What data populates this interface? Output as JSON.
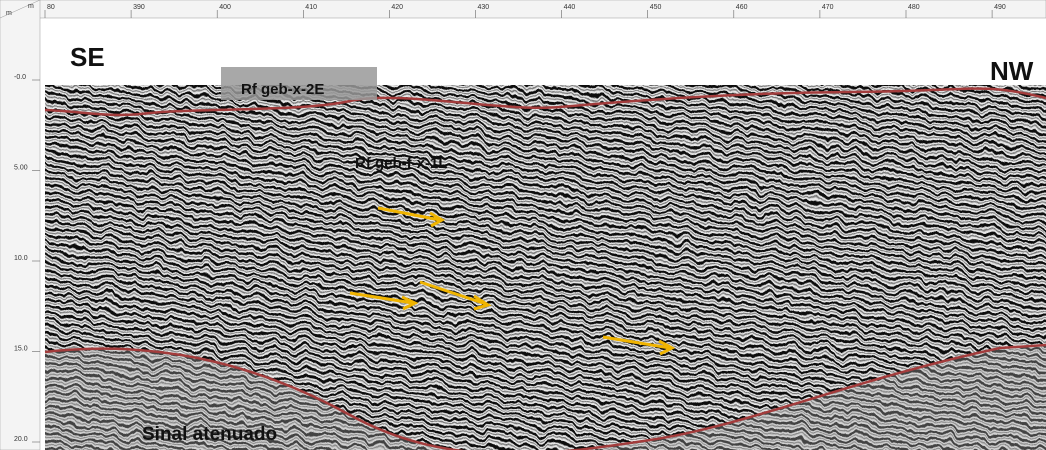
{
  "axes": {
    "x_unit": "m",
    "y_unit": "m",
    "x_ticks": [
      "80",
      "390",
      "400",
      "410",
      "420",
      "430",
      "440",
      "450",
      "460",
      "470",
      "480",
      "490"
    ],
    "y_ticks": [
      "-0.0",
      "5.00",
      "10.0",
      "15.0",
      "20.0"
    ]
  },
  "labels": {
    "left": "SE",
    "right": "NW",
    "reflector_top": "Rf geb-x-2E",
    "reflector_mid": "Rf geb-f-x-1L",
    "bottom": "Sinal atenuado"
  }
}
